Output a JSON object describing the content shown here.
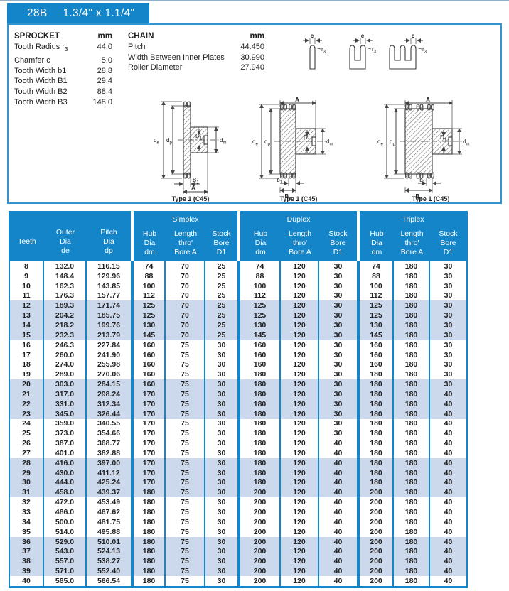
{
  "header": {
    "code": "28B",
    "size": "1.3/4\" x 1.1/4\""
  },
  "sprocket": {
    "title": "SPROCKET",
    "unit": "mm",
    "items": [
      {
        "label": "Tooth Radius r",
        "sub": "3",
        "value": "44.0"
      },
      {
        "label": "Chamfer c",
        "sub": "",
        "value": "5.0"
      },
      {
        "label": "Tooth Width b1",
        "sub": "",
        "value": "28.8"
      },
      {
        "label": "Tooth Width B1",
        "sub": "",
        "value": "29.4"
      },
      {
        "label": "Tooth Width B2",
        "sub": "",
        "value": "88.4"
      },
      {
        "label": "Tooth Width B3",
        "sub": "",
        "value": "148.0"
      }
    ]
  },
  "chain": {
    "title": "CHAIN",
    "unit": "mm",
    "items": [
      {
        "label": "Pitch",
        "sub": "",
        "value": "44.450"
      },
      {
        "label": "Width Between Inner Plates",
        "sub": "",
        "value": "30.990"
      },
      {
        "label": "Roller Diameter",
        "sub": "",
        "value": "27.940"
      }
    ]
  },
  "diagrams": {
    "caption": "Type 1 (C45)",
    "labels": {
      "c": {
        "m": "c",
        "s": ""
      },
      "r3": {
        "m": "r",
        "s": "3"
      },
      "de": {
        "m": "d",
        "s": "e"
      },
      "dp": {
        "m": "d",
        "s": "p"
      },
      "D1": {
        "m": "D",
        "s": "1"
      },
      "dm": {
        "m": "d",
        "s": "m"
      },
      "A": {
        "m": "A",
        "s": ""
      },
      "b1": {
        "m": "b",
        "s": "1"
      },
      "B1": {
        "m": "B",
        "s": "1"
      },
      "B2": {
        "m": "B",
        "s": "2"
      },
      "B3": {
        "m": "B",
        "s": "3"
      }
    }
  },
  "table": {
    "teeth_header": [
      "Teeth"
    ],
    "outer_header": [
      "Outer",
      "Dia",
      "de"
    ],
    "pitch_header": [
      "Pitch",
      "Dia",
      "dp"
    ],
    "groups": [
      "Simplex",
      "Duplex",
      "Triplex"
    ],
    "sub_headers": [
      [
        "Hub",
        "Dia",
        "dm"
      ],
      [
        "Length",
        "thro'",
        "Bore A"
      ],
      [
        "Stock",
        "Bore",
        "D1"
      ]
    ],
    "rows": [
      [
        "8",
        "132.0",
        "116.15",
        "74",
        "70",
        "25",
        "74",
        "120",
        "30",
        "74",
        "180",
        "30"
      ],
      [
        "9",
        "148.4",
        "129.96",
        "88",
        "70",
        "25",
        "88",
        "120",
        "30",
        "88",
        "180",
        "30"
      ],
      [
        "10",
        "162.3",
        "143.85",
        "100",
        "70",
        "25",
        "100",
        "120",
        "30",
        "100",
        "180",
        "30"
      ],
      [
        "11",
        "176.3",
        "157.77",
        "112",
        "70",
        "25",
        "112",
        "120",
        "30",
        "112",
        "180",
        "30"
      ],
      [
        "12",
        "189.3",
        "171.74",
        "125",
        "70",
        "25",
        "125",
        "120",
        "30",
        "125",
        "180",
        "30"
      ],
      [
        "13",
        "204.2",
        "185.75",
        "125",
        "70",
        "25",
        "125",
        "120",
        "30",
        "125",
        "180",
        "30"
      ],
      [
        "14",
        "218.2",
        "199.76",
        "130",
        "70",
        "25",
        "130",
        "120",
        "30",
        "130",
        "180",
        "30"
      ],
      [
        "15",
        "232.3",
        "213.79",
        "145",
        "70",
        "25",
        "145",
        "120",
        "30",
        "145",
        "180",
        "30"
      ],
      [
        "16",
        "246.3",
        "227.84",
        "160",
        "75",
        "30",
        "160",
        "120",
        "30",
        "160",
        "180",
        "30"
      ],
      [
        "17",
        "260.0",
        "241.90",
        "160",
        "75",
        "30",
        "160",
        "120",
        "30",
        "160",
        "180",
        "30"
      ],
      [
        "18",
        "274.0",
        "255.98",
        "160",
        "75",
        "30",
        "160",
        "120",
        "30",
        "160",
        "180",
        "30"
      ],
      [
        "19",
        "289.0",
        "270.06",
        "160",
        "75",
        "30",
        "180",
        "120",
        "30",
        "180",
        "180",
        "30"
      ],
      [
        "20",
        "303.0",
        "284.15",
        "160",
        "75",
        "30",
        "180",
        "120",
        "30",
        "180",
        "180",
        "30"
      ],
      [
        "21",
        "317.0",
        "298.24",
        "170",
        "75",
        "30",
        "180",
        "120",
        "30",
        "180",
        "180",
        "40"
      ],
      [
        "22",
        "331.0",
        "312.34",
        "170",
        "75",
        "30",
        "180",
        "120",
        "30",
        "180",
        "180",
        "40"
      ],
      [
        "23",
        "345.0",
        "326.44",
        "170",
        "75",
        "30",
        "180",
        "120",
        "30",
        "180",
        "180",
        "40"
      ],
      [
        "24",
        "359.0",
        "340.55",
        "170",
        "75",
        "30",
        "180",
        "120",
        "30",
        "180",
        "180",
        "40"
      ],
      [
        "25",
        "373.0",
        "354.66",
        "170",
        "75",
        "30",
        "180",
        "120",
        "30",
        "180",
        "180",
        "40"
      ],
      [
        "26",
        "387.0",
        "368.77",
        "170",
        "75",
        "30",
        "180",
        "120",
        "40",
        "180",
        "180",
        "40"
      ],
      [
        "27",
        "401.0",
        "382.88",
        "170",
        "75",
        "30",
        "180",
        "120",
        "40",
        "180",
        "180",
        "40"
      ],
      [
        "28",
        "416.0",
        "397.00",
        "170",
        "75",
        "30",
        "180",
        "120",
        "40",
        "180",
        "180",
        "40"
      ],
      [
        "29",
        "430.0",
        "411.12",
        "170",
        "75",
        "30",
        "180",
        "120",
        "40",
        "180",
        "180",
        "40"
      ],
      [
        "30",
        "444.0",
        "425.24",
        "170",
        "75",
        "30",
        "180",
        "120",
        "40",
        "180",
        "180",
        "40"
      ],
      [
        "31",
        "458.0",
        "439.37",
        "180",
        "75",
        "30",
        "200",
        "120",
        "40",
        "200",
        "180",
        "40"
      ],
      [
        "32",
        "472.0",
        "453.49",
        "180",
        "75",
        "30",
        "200",
        "120",
        "40",
        "200",
        "180",
        "40"
      ],
      [
        "33",
        "486.0",
        "467.62",
        "180",
        "75",
        "30",
        "200",
        "120",
        "40",
        "200",
        "180",
        "40"
      ],
      [
        "34",
        "500.0",
        "481.75",
        "180",
        "75",
        "30",
        "200",
        "120",
        "40",
        "200",
        "180",
        "40"
      ],
      [
        "35",
        "514.0",
        "495.88",
        "180",
        "75",
        "30",
        "200",
        "120",
        "40",
        "200",
        "180",
        "40"
      ],
      [
        "36",
        "529.0",
        "510.01",
        "180",
        "75",
        "30",
        "200",
        "120",
        "40",
        "200",
        "180",
        "40"
      ],
      [
        "37",
        "543.0",
        "524.13",
        "180",
        "75",
        "30",
        "200",
        "120",
        "40",
        "200",
        "180",
        "40"
      ],
      [
        "38",
        "557.0",
        "538.27",
        "180",
        "75",
        "30",
        "200",
        "120",
        "40",
        "200",
        "180",
        "40"
      ],
      [
        "39",
        "571.0",
        "552.40",
        "180",
        "75",
        "30",
        "200",
        "120",
        "40",
        "200",
        "180",
        "40"
      ],
      [
        "40",
        "585.0",
        "566.54",
        "180",
        "75",
        "30",
        "200",
        "120",
        "40",
        "200",
        "180",
        "40"
      ]
    ]
  },
  "colors": {
    "blue": "#1385c8",
    "row_shade": "#ccd9ed"
  }
}
